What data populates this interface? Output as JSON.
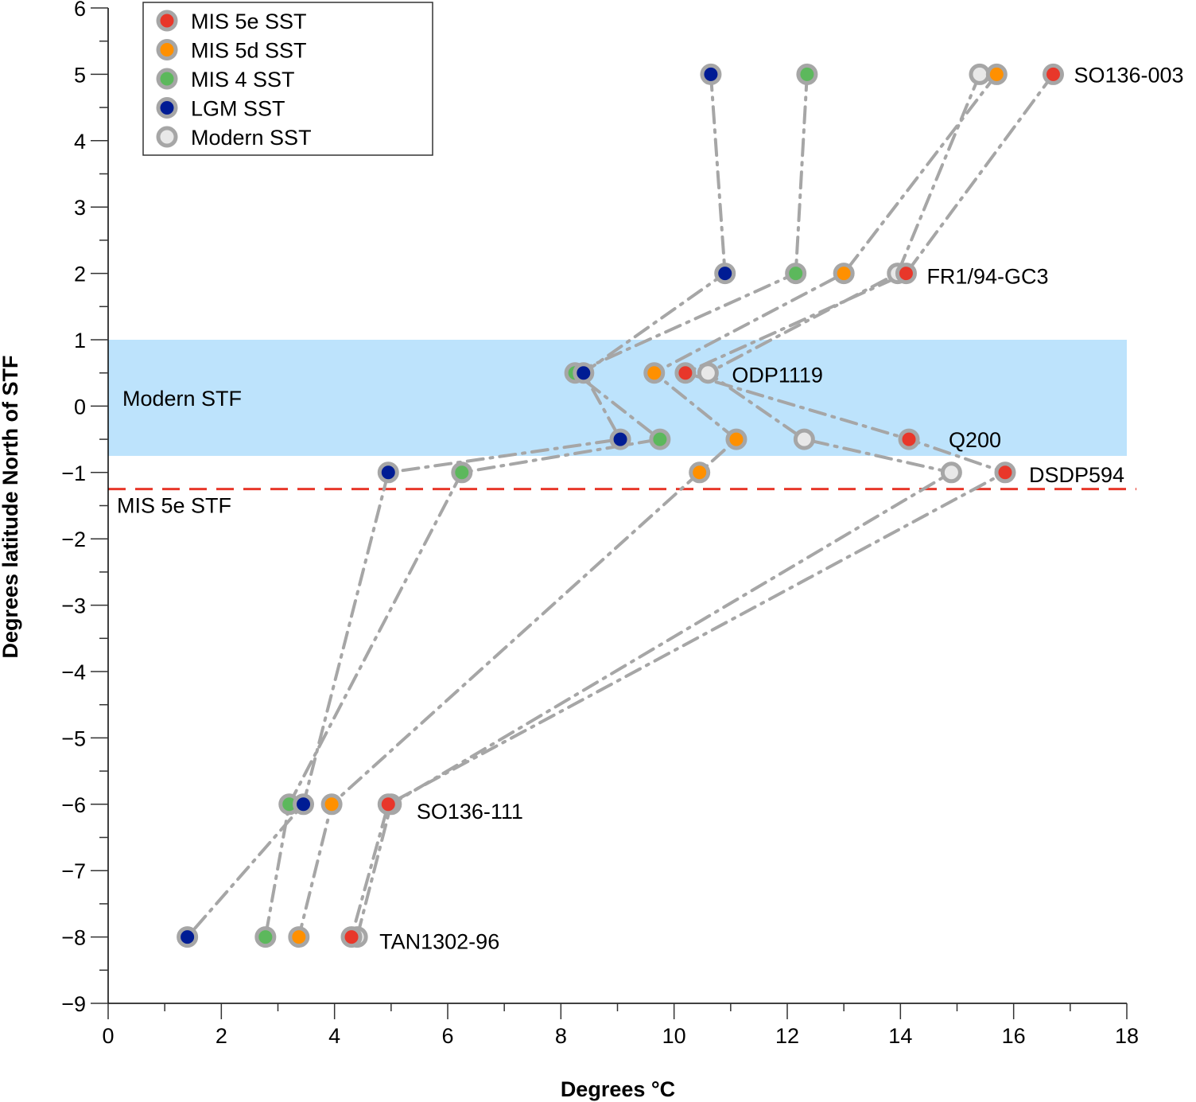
{
  "chart_data": {
    "type": "scatter",
    "title": "",
    "xlabel": "Degrees °C",
    "ylabel": "Degrees latitude North of STF",
    "xlim": [
      0,
      18
    ],
    "ylim": [
      -9,
      6
    ],
    "x_ticks": [
      0,
      2,
      4,
      6,
      8,
      10,
      12,
      14,
      16,
      18
    ],
    "x_tick_labels": [
      "0",
      "2",
      "4",
      "6",
      "8",
      "10",
      "12",
      "14",
      "16",
      "18"
    ],
    "y_ticks": [
      6,
      5,
      4,
      3,
      2,
      1,
      0,
      -1,
      -2,
      -3,
      -4,
      -5,
      -6,
      -7,
      -8,
      -9
    ],
    "y_tick_labels": [
      "6",
      "5",
      "4",
      "3",
      "2",
      "1",
      "0",
      "−1",
      "−2",
      "−3",
      "−4",
      "−5",
      "−6",
      "−7",
      "−8",
      "−9"
    ],
    "grid": false,
    "legend_position": "top-left",
    "marker_edge_color": "#a6a6a6",
    "line_color": "#a6a6a6",
    "line_style": "dash-dot",
    "shaded_regions": [
      {
        "label": "Modern STF",
        "y_from": -0.75,
        "y_to": 1.0,
        "color": "#bde3fc"
      }
    ],
    "reference_lines": [
      {
        "label": "MIS 5e STF",
        "y": -1.25,
        "color": "#e8372a",
        "style": "dashed"
      }
    ],
    "sites": [
      {
        "name": "SO136-003",
        "y": 5
      },
      {
        "name": "FR1/94-GC3",
        "y": 2
      },
      {
        "name": "ODP1119",
        "y": 0.5
      },
      {
        "name": "Q200",
        "y": -0.5
      },
      {
        "name": "DSDP594",
        "y": -1
      },
      {
        "name": "SO136-111",
        "y": -6
      },
      {
        "name": "TAN1302-96",
        "y": -8
      }
    ],
    "series": [
      {
        "name": "Modern SST",
        "color": "#e8e8e8",
        "points": [
          [
            15.4,
            5
          ],
          [
            13.95,
            2
          ],
          [
            10.6,
            0.5
          ],
          [
            12.3,
            -0.5
          ],
          [
            14.9,
            -1
          ],
          [
            5.0,
            -6
          ],
          [
            4.4,
            -8
          ]
        ]
      },
      {
        "name": "MIS 5e SST",
        "color": "#e8372a",
        "points": [
          [
            16.7,
            5
          ],
          [
            14.1,
            2
          ],
          [
            10.2,
            0.5
          ],
          [
            14.15,
            -0.5
          ],
          [
            15.85,
            -1
          ],
          [
            4.95,
            -6
          ],
          [
            4.3,
            -8
          ]
        ]
      },
      {
        "name": "MIS 5d SST",
        "color": "#ff9000",
        "points": [
          [
            15.7,
            5
          ],
          [
            13.0,
            2
          ],
          [
            9.65,
            0.5
          ],
          [
            11.1,
            -0.5
          ],
          [
            10.45,
            -1
          ],
          [
            3.95,
            -6
          ],
          [
            3.37,
            -8
          ]
        ]
      },
      {
        "name": "MIS 4 SST",
        "color": "#5cb85c",
        "points": [
          [
            12.35,
            5
          ],
          [
            12.15,
            2
          ],
          [
            8.25,
            0.5
          ],
          [
            9.75,
            -0.5
          ],
          [
            6.25,
            -1
          ],
          [
            3.2,
            -6
          ],
          [
            2.78,
            -8
          ]
        ]
      },
      {
        "name": "LGM SST",
        "color": "#001c94",
        "points": [
          [
            10.65,
            5
          ],
          [
            10.9,
            2
          ],
          [
            8.4,
            0.5
          ],
          [
            9.05,
            -0.5
          ],
          [
            4.95,
            -1
          ],
          [
            3.45,
            -6
          ],
          [
            1.4,
            -8
          ]
        ]
      }
    ],
    "legend_order": [
      "MIS 5e SST",
      "MIS 5d SST",
      "MIS 4 SST",
      "LGM SST",
      "Modern SST"
    ]
  }
}
